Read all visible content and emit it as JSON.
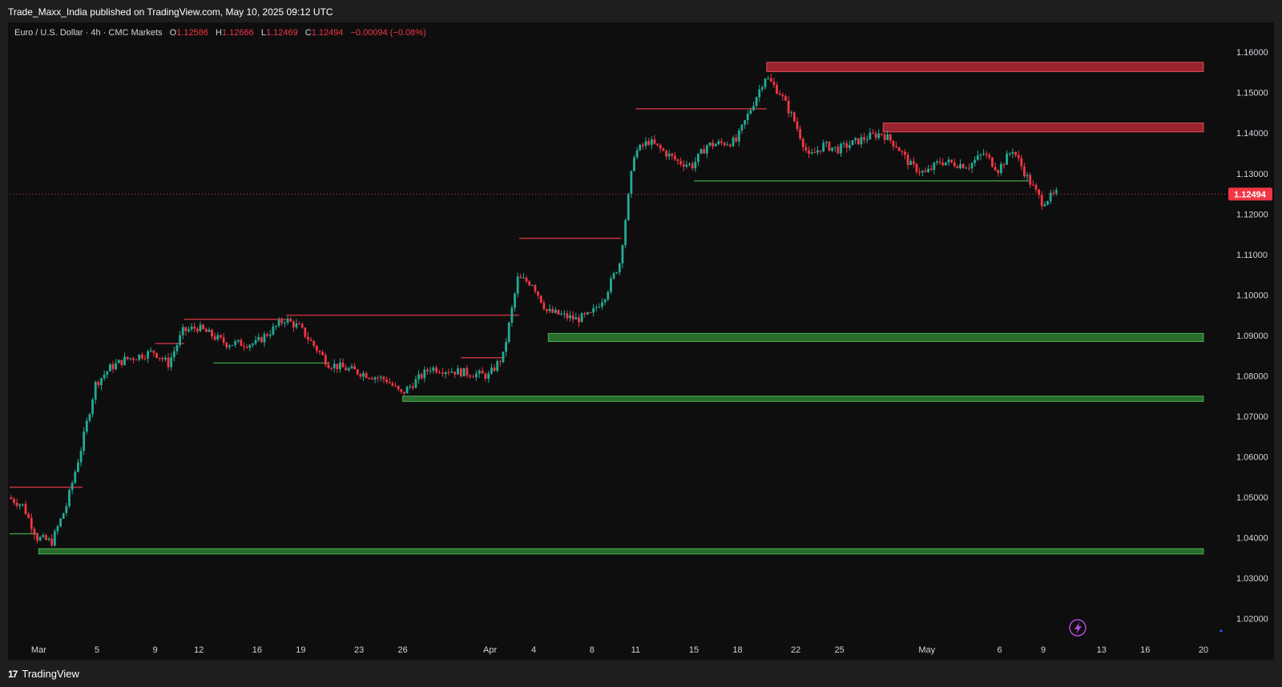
{
  "header": {
    "published": "Trade_Maxx_India published on TradingView.com, May 10, 2025 09:12 UTC"
  },
  "legend": {
    "symbol": "Euro / U.S. Dollar · 4h · CMC Markets",
    "o_label": "O",
    "o": "1.12586",
    "h_label": "H",
    "h": "1.12666",
    "l_label": "L",
    "l": "1.12469",
    "c_label": "C",
    "c": "1.12494",
    "change": "−0.00094 (−0.08%)"
  },
  "footer": {
    "brand_mark": "17",
    "brand": "TradingView"
  },
  "colors": {
    "up": "#22ab94",
    "down": "#f23645",
    "supply": "#b22833",
    "demand": "#2e7d32",
    "bg": "#0e0e0e"
  },
  "chart_data": {
    "type": "candlestick",
    "title": "Euro / U.S. Dollar · 4h · CMC Markets",
    "ylim": [
      1.015,
      1.163
    ],
    "y_ticks": [
      "1.16000",
      "1.15000",
      "1.14000",
      "1.13000",
      "1.12000",
      "1.11000",
      "1.10000",
      "1.09000",
      "1.08000",
      "1.07000",
      "1.06000",
      "1.05000",
      "1.04000",
      "1.03000",
      "1.02000"
    ],
    "x_ticks": [
      "Mar",
      "5",
      "9",
      "12",
      "16",
      "19",
      "23",
      "26",
      "Apr",
      "4",
      "8",
      "11",
      "15",
      "18",
      "22",
      "25",
      "May",
      "6",
      "9",
      "13",
      "16",
      "20"
    ],
    "last_price": "1.12494",
    "price_path": [
      {
        "date": "Feb 27",
        "value": 1.05
      },
      {
        "date": "Feb 28",
        "value": 1.048
      },
      {
        "date": "Mar 1",
        "value": 1.04
      },
      {
        "date": "Mar 2",
        "value": 1.039
      },
      {
        "date": "Mar 3",
        "value": 1.048
      },
      {
        "date": "Mar 4",
        "value": 1.062
      },
      {
        "date": "Mar 5",
        "value": 1.078
      },
      {
        "date": "Mar 6",
        "value": 1.082
      },
      {
        "date": "Mar 7",
        "value": 1.084
      },
      {
        "date": "Mar 9",
        "value": 1.086
      },
      {
        "date": "Mar 10",
        "value": 1.083
      },
      {
        "date": "Mar 11",
        "value": 1.091
      },
      {
        "date": "Mar 12",
        "value": 1.092
      },
      {
        "date": "Mar 14",
        "value": 1.088
      },
      {
        "date": "Mar 16",
        "value": 1.088
      },
      {
        "date": "Mar 18",
        "value": 1.094
      },
      {
        "date": "Mar 19",
        "value": 1.092
      },
      {
        "date": "Mar 21",
        "value": 1.083
      },
      {
        "date": "Mar 23",
        "value": 1.081
      },
      {
        "date": "Mar 25",
        "value": 1.079
      },
      {
        "date": "Mar 26",
        "value": 1.0755
      },
      {
        "date": "Mar 28",
        "value": 1.082
      },
      {
        "date": "Apr 1",
        "value": 1.08
      },
      {
        "date": "Apr 2",
        "value": 1.085
      },
      {
        "date": "Apr 3",
        "value": 1.104
      },
      {
        "date": "Apr 4",
        "value": 1.103
      },
      {
        "date": "Apr 5",
        "value": 1.096
      },
      {
        "date": "Apr 7",
        "value": 1.094
      },
      {
        "date": "Apr 8",
        "value": 1.095
      },
      {
        "date": "Apr 9",
        "value": 1.1
      },
      {
        "date": "Apr 10",
        "value": 1.108
      },
      {
        "date": "Apr 11",
        "value": 1.135
      },
      {
        "date": "Apr 12",
        "value": 1.138
      },
      {
        "date": "Apr 14",
        "value": 1.133
      },
      {
        "date": "Apr 15",
        "value": 1.132
      },
      {
        "date": "Apr 16",
        "value": 1.137
      },
      {
        "date": "Apr 18",
        "value": 1.138
      },
      {
        "date": "Apr 20",
        "value": 1.154
      },
      {
        "date": "Apr 21",
        "value": 1.15
      },
      {
        "date": "Apr 22",
        "value": 1.143
      },
      {
        "date": "Apr 23",
        "value": 1.134
      },
      {
        "date": "Apr 24",
        "value": 1.137
      },
      {
        "date": "Apr 25",
        "value": 1.136
      },
      {
        "date": "Apr 27",
        "value": 1.139
      },
      {
        "date": "Apr 28",
        "value": 1.14
      },
      {
        "date": "Apr 29",
        "value": 1.137
      },
      {
        "date": "Apr 30",
        "value": 1.132
      },
      {
        "date": "May 1",
        "value": 1.13
      },
      {
        "date": "May 2",
        "value": 1.133
      },
      {
        "date": "May 4",
        "value": 1.132
      },
      {
        "date": "May 5",
        "value": 1.135
      },
      {
        "date": "May 6",
        "value": 1.131
      },
      {
        "date": "May 7",
        "value": 1.136
      },
      {
        "date": "May 8",
        "value": 1.129
      },
      {
        "date": "May 9",
        "value": 1.123
      },
      {
        "date": "May 10",
        "value": 1.125
      }
    ],
    "zones": [
      {
        "kind": "supply",
        "from": "Apr 20",
        "to": "May 20",
        "low": 1.1552,
        "high": 1.1575
      },
      {
        "kind": "supply",
        "from": "Apr 28",
        "to": "May 20",
        "low": 1.1403,
        "high": 1.1425
      },
      {
        "kind": "demand",
        "from": "Apr 5",
        "to": "May 20",
        "low": 1.0885,
        "high": 1.0905
      },
      {
        "kind": "demand",
        "from": "Mar 26",
        "to": "May 20",
        "low": 1.0737,
        "high": 1.075
      },
      {
        "kind": "demand",
        "from": "Mar 1",
        "to": "May 20",
        "low": 1.036,
        "high": 1.0373
      }
    ],
    "levels": [
      {
        "kind": "resistance",
        "from": "Feb 27",
        "to": "Mar 4",
        "value": 1.0525
      },
      {
        "kind": "support",
        "from": "Feb 27",
        "to": "Mar 1",
        "value": 1.041
      },
      {
        "kind": "resistance",
        "from": "Mar 9",
        "to": "Mar 11",
        "value": 1.088
      },
      {
        "kind": "resistance",
        "from": "Mar 11",
        "to": "Mar 18",
        "value": 1.094
      },
      {
        "kind": "resistance",
        "from": "Mar 18",
        "to": "Apr 3",
        "value": 1.095
      },
      {
        "kind": "support",
        "from": "Mar 13",
        "to": "Mar 21",
        "value": 1.0832
      },
      {
        "kind": "resistance",
        "from": "Mar 30",
        "to": "Apr 2",
        "value": 1.0845
      },
      {
        "kind": "resistance",
        "from": "Apr 3",
        "to": "Apr 10",
        "value": 1.114
      },
      {
        "kind": "resistance",
        "from": "Apr 11",
        "to": "Apr 20",
        "value": 1.146
      },
      {
        "kind": "support",
        "from": "Apr 15",
        "to": "May 8",
        "value": 1.1282
      }
    ]
  }
}
